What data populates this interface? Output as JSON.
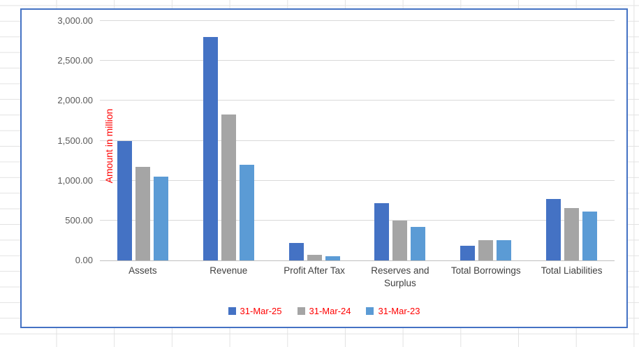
{
  "worksheet": {
    "grid_color": "#e2e2e2",
    "background": "#ffffff"
  },
  "chart": {
    "border_color": "#4472C4",
    "plot_background": "#ffffff",
    "gridline_color": "#d9d9d9",
    "axis_line_color": "#bfbfbf",
    "tick_label_color": "#595959",
    "category_label_color": "#404040",
    "y_axis_title_color": "#FF0000",
    "legend_text_color": "#FF0000"
  },
  "chart_data": {
    "type": "bar",
    "title": "",
    "ylabel": "Amount in million",
    "xlabel": "",
    "ylim": [
      0,
      3000
    ],
    "grid": true,
    "legend_position": "bottom",
    "categories": [
      "Assets",
      "Revenue",
      "Profit After Tax",
      "Reserves and Surplus",
      "Total Borrowings",
      "Total Liabilities"
    ],
    "series": [
      {
        "name": "31-Mar-25",
        "color": "#4472C4",
        "values": [
          1500,
          2800,
          220,
          715,
          185,
          770
        ]
      },
      {
        "name": "31-Mar-24",
        "color": "#A5A5A5",
        "values": [
          1175,
          1825,
          70,
          500,
          250,
          660
        ]
      },
      {
        "name": "31-Mar-23",
        "color": "#5B9BD5",
        "values": [
          1050,
          1200,
          50,
          420,
          250,
          610
        ]
      }
    ],
    "y_ticks": [
      {
        "label": "0.00",
        "value": 0
      },
      {
        "label": "500.00",
        "value": 500
      },
      {
        "label": "1,000.00",
        "value": 1000
      },
      {
        "label": "1,500.00",
        "value": 1500
      },
      {
        "label": "2,000.00",
        "value": 2000
      },
      {
        "label": "2,500.00",
        "value": 2500
      },
      {
        "label": "3,000.00",
        "value": 3000
      }
    ]
  }
}
